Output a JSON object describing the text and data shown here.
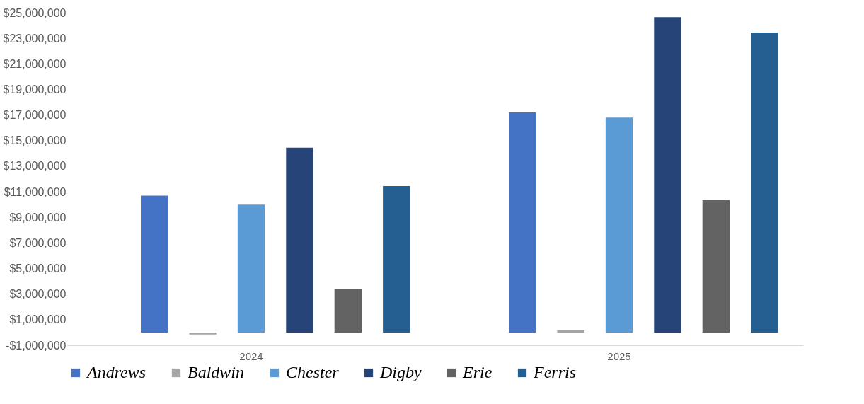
{
  "chart_data": {
    "type": "bar",
    "categories": [
      "2024",
      "2025"
    ],
    "series": [
      {
        "name": "Andrews",
        "color": "#4472c4",
        "values": [
          10700000,
          17200000
        ]
      },
      {
        "name": "Baldwin",
        "color": "#a5a5a5",
        "values": [
          -150000,
          160000
        ]
      },
      {
        "name": "Chester",
        "color": "#5b9bd5",
        "values": [
          10000000,
          16800000
        ]
      },
      {
        "name": "Digby",
        "color": "#264478",
        "values": [
          14450000,
          24650000
        ]
      },
      {
        "name": "Erie",
        "color": "#636363",
        "values": [
          3430000,
          10350000
        ]
      },
      {
        "name": "Ferris",
        "color": "#255e91",
        "values": [
          11450000,
          23450000
        ]
      }
    ],
    "ylim": [
      -1000000,
      25000000
    ],
    "yticks": [
      {
        "value": -1000000,
        "label": "-$1,000,000"
      },
      {
        "value": 1000000,
        "label": "$1,000,000"
      },
      {
        "value": 3000000,
        "label": "$3,000,000"
      },
      {
        "value": 5000000,
        "label": "$5,000,000"
      },
      {
        "value": 7000000,
        "label": "$7,000,000"
      },
      {
        "value": 9000000,
        "label": "$9,000,000"
      },
      {
        "value": 11000000,
        "label": "$11,000,000"
      },
      {
        "value": 13000000,
        "label": "$13,000,000"
      },
      {
        "value": 15000000,
        "label": "$15,000,000"
      },
      {
        "value": 17000000,
        "label": "$17,000,000"
      },
      {
        "value": 19000000,
        "label": "$19,000,000"
      },
      {
        "value": 21000000,
        "label": "$21,000,000"
      },
      {
        "value": 23000000,
        "label": "$23,000,000"
      },
      {
        "value": 25000000,
        "label": "$25,000,000"
      }
    ],
    "grid": false,
    "legend": "bottom"
  }
}
